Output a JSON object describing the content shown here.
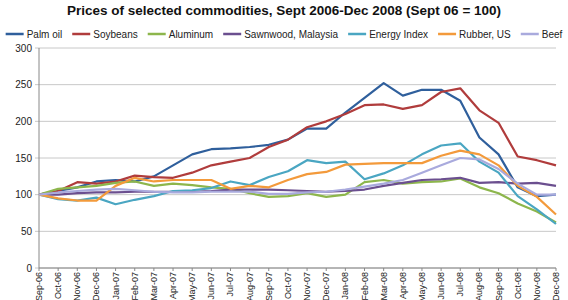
{
  "chart_data": {
    "type": "line",
    "title": "Prices of selected commodities, Sept 2006-Dec 2008 (Sept 06 = 100)",
    "categories": [
      "Sep-06",
      "Oct-06",
      "Nov-06",
      "Dec-06",
      "Jan-07",
      "Feb-07",
      "Mar-07",
      "Apr-07",
      "May-07",
      "Jun-07",
      "Jul-07",
      "Aug-07",
      "Sep-07",
      "Oct-07",
      "Nov-07",
      "Dec-07",
      "Jan-08",
      "Feb-08",
      "Mar-08",
      "Apr-08",
      "May-08",
      "Jun-08",
      "Jul-08",
      "Aug-08",
      "Sep-08",
      "Oct-08",
      "Nov-08",
      "Dec-08"
    ],
    "series": [
      {
        "name": "Palm oil",
        "color": "#2f5f9c",
        "values": [
          100,
          105,
          110,
          118,
          120,
          118,
          125,
          140,
          155,
          162,
          163,
          165,
          168,
          175,
          190,
          190,
          212,
          232,
          252,
          235,
          243,
          243,
          228,
          178,
          155,
          110,
          98,
          100
        ]
      },
      {
        "name": "Soybeans",
        "color": "#b03c3c",
        "values": [
          100,
          105,
          117,
          115,
          118,
          126,
          124,
          123,
          130,
          140,
          145,
          150,
          165,
          175,
          192,
          200,
          210,
          222,
          223,
          217,
          222,
          240,
          245,
          215,
          198,
          152,
          147,
          140
        ]
      },
      {
        "name": "Aluminum",
        "color": "#8db64c",
        "values": [
          100,
          108,
          110,
          112,
          116,
          118,
          112,
          115,
          113,
          110,
          108,
          102,
          97,
          98,
          102,
          97,
          100,
          117,
          120,
          115,
          117,
          118,
          122,
          110,
          102,
          88,
          77,
          62
        ]
      },
      {
        "name": "Sawnwood, Malaysia",
        "color": "#6b4f8f",
        "values": [
          100,
          100,
          102,
          103,
          103,
          104,
          104,
          104,
          104,
          105,
          107,
          107,
          107,
          106,
          105,
          104,
          105,
          107,
          112,
          116,
          120,
          121,
          123,
          116,
          117,
          115,
          116,
          112
        ]
      },
      {
        "name": "Energy Index",
        "color": "#4aa6c2",
        "values": [
          100,
          94,
          92,
          96,
          87,
          93,
          98,
          105,
          106,
          109,
          118,
          113,
          124,
          132,
          147,
          143,
          145,
          121,
          129,
          140,
          155,
          167,
          170,
          145,
          130,
          98,
          80,
          60
        ]
      },
      {
        "name": "Rubber, US",
        "color": "#f39a3b",
        "values": [
          100,
          95,
          92,
          92,
          112,
          123,
          118,
          120,
          120,
          120,
          108,
          112,
          110,
          120,
          128,
          131,
          141,
          142,
          143,
          143,
          143,
          153,
          160,
          155,
          140,
          112,
          97,
          73
        ]
      },
      {
        "name": "Beef",
        "color": "#a9aadd",
        "values": [
          100,
          103,
          105,
          107,
          108,
          106,
          104,
          103,
          103,
          104,
          104,
          104,
          101,
          101,
          103,
          104,
          107,
          111,
          115,
          120,
          130,
          140,
          150,
          148,
          135,
          115,
          100,
          100
        ]
      }
    ],
    "ylim": [
      0,
      300
    ],
    "yticks": [
      0,
      50,
      100,
      150,
      200,
      250,
      300
    ],
    "grid": true,
    "legend": "top"
  }
}
